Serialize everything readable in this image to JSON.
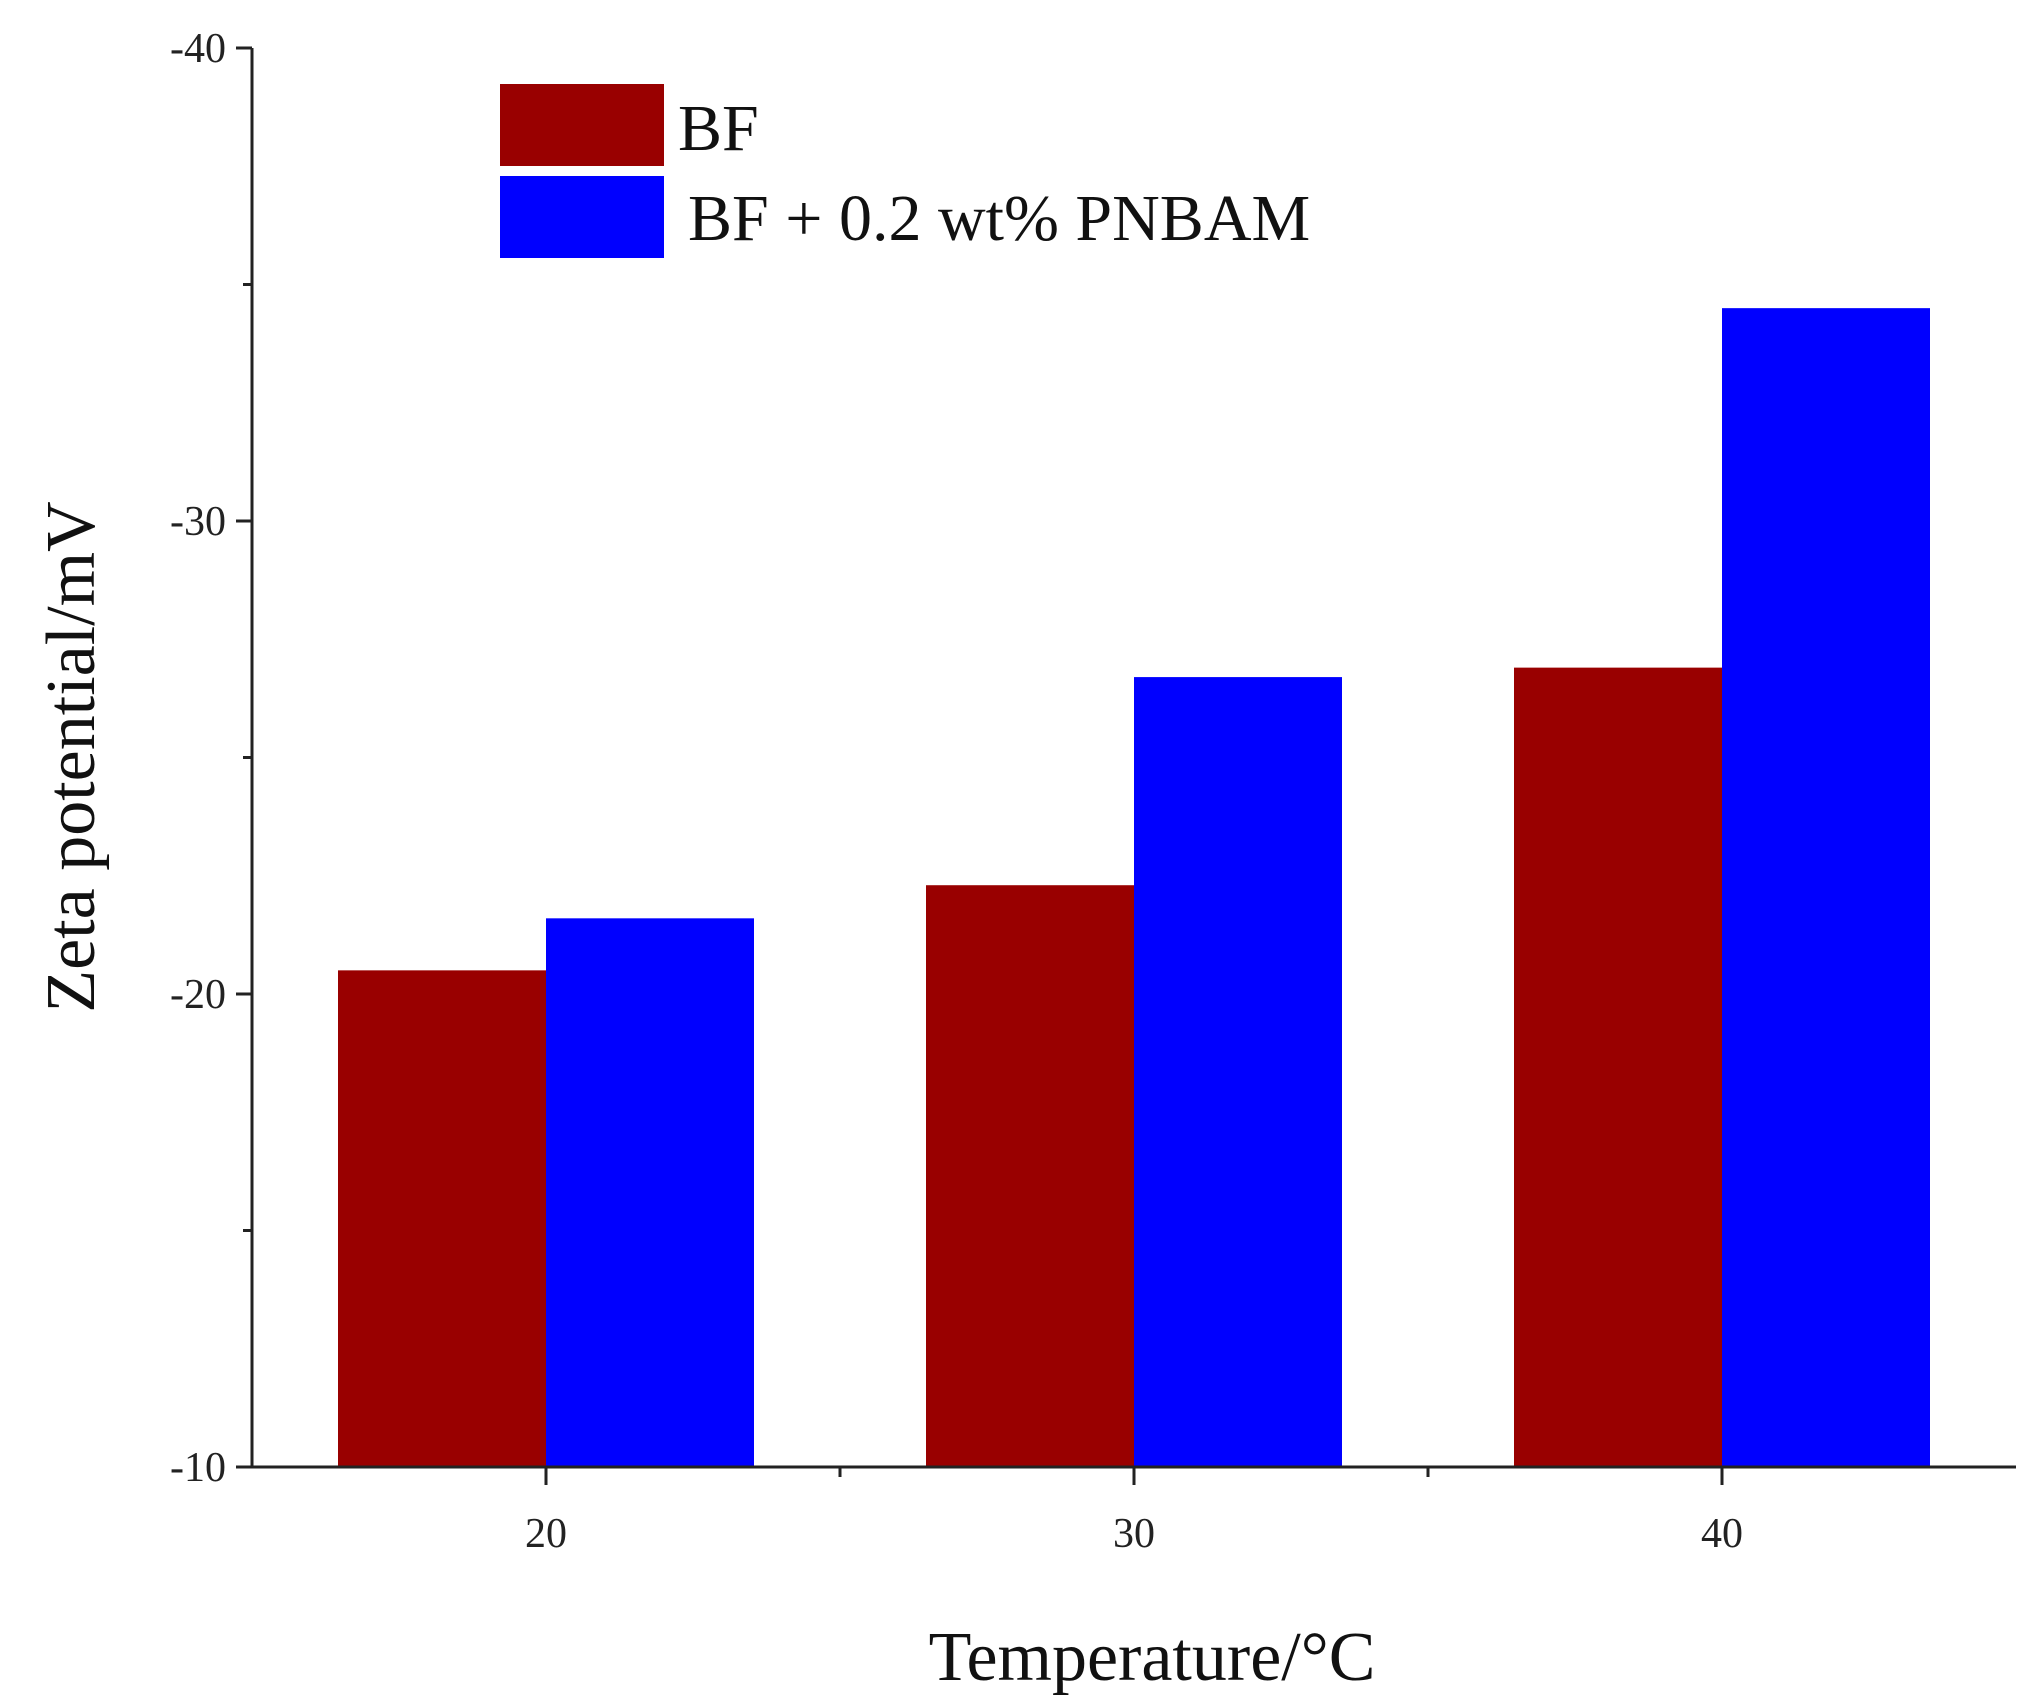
{
  "chart_data": {
    "type": "bar",
    "title": "",
    "xlabel": "Temperature/°C",
    "ylabel": "Zeta potential/mV",
    "categories": [
      "20",
      "30",
      "40"
    ],
    "series": [
      {
        "name": "BF",
        "color": "#990000",
        "values": [
          -20.5,
          -22.3,
          -26.9
        ]
      },
      {
        "name": "BF + 0.2 wt% PNBAM",
        "color": "#0000FF",
        "values": [
          -21.6,
          -26.7,
          -34.5
        ]
      }
    ],
    "ylim": [
      -10,
      -40
    ],
    "yticks": [
      "-10",
      "-20",
      "-30",
      "-40"
    ],
    "ytick_values": [
      -10,
      -20,
      -30,
      -40
    ],
    "y_minor_step": 5,
    "grid": false,
    "legend_position": "top-left"
  }
}
